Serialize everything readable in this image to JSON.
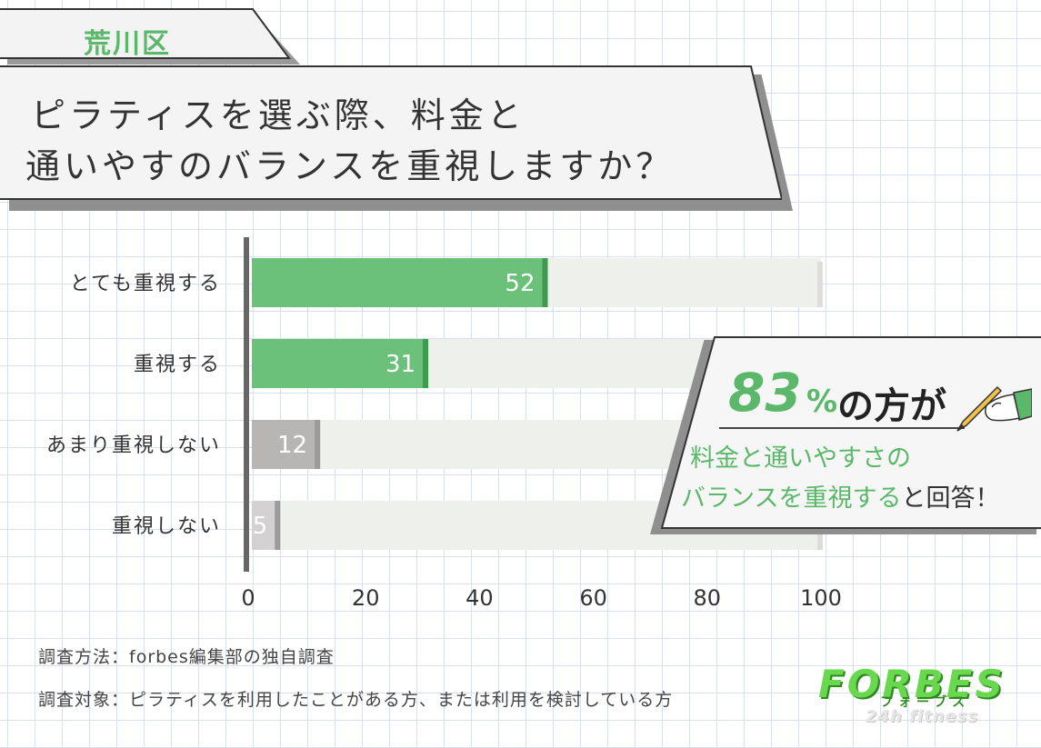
{
  "tag": {
    "text": "荒川区"
  },
  "title": {
    "line1": "ピラティスを選ぶ際、料金と",
    "line2": "通いやすのバランスを重視しますか？"
  },
  "chart_data": {
    "type": "bar",
    "orientation": "horizontal",
    "categories": [
      "とても重視する",
      "重視する",
      "あまり重視しない",
      "重視しない"
    ],
    "values": [
      52,
      31,
      12,
      5
    ],
    "xlim": [
      0,
      100
    ],
    "xticks": [
      0,
      20,
      40,
      60,
      80,
      100
    ],
    "colors": {
      "emphasis": "#6cc17a",
      "emphasis_edge": "#3e9a4f",
      "muted": "#b8b5b5",
      "muted_light": "#d3d1d1",
      "track": "#eef0ec"
    },
    "bar_colors": [
      "emphasis",
      "emphasis",
      "muted",
      "muted_light"
    ]
  },
  "callout": {
    "percent": "83",
    "percent_sign": "%",
    "headline_rest": "の方が",
    "line1": "料金と通いやすさの",
    "line2_highlight": "バランスを重視する",
    "line2_rest": "と回答！"
  },
  "notes": {
    "method": "調査方法：forbes編集部の独自調査",
    "target": "調査対象：ピラティスを利用したことがある方、または利用を検討している方"
  },
  "logo": {
    "main": "FORBES",
    "kana": "フォーブス",
    "sub": "24h fitness"
  }
}
